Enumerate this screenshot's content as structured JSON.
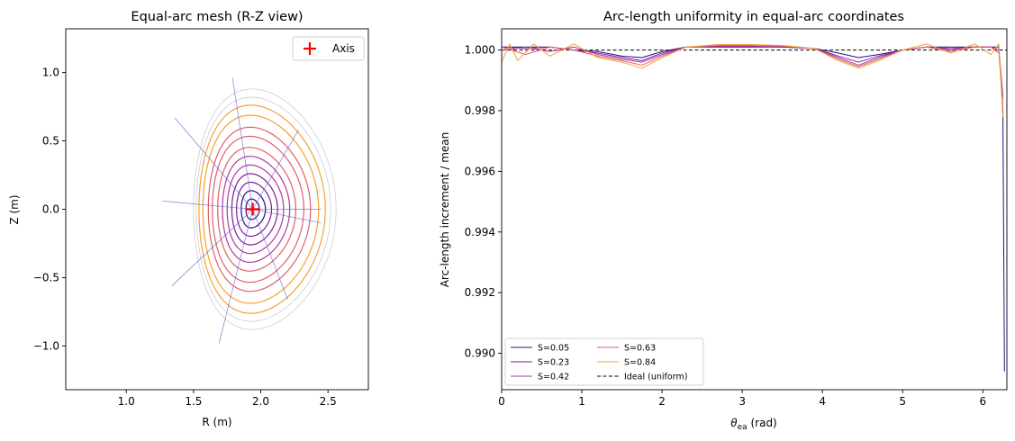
{
  "colors": {
    "S005": "#2a0a8a",
    "S023": "#7c1aa0",
    "S042": "#b1389a",
    "S063": "#df5f69",
    "S084": "#f5a033",
    "outer": "#c8c4cf",
    "ray": "#6a5acd",
    "axis_marker": "#ff0000",
    "ideal": "#000000"
  },
  "chart_data": [
    {
      "type": "line",
      "title": "Equal-arc mesh (R-Z view)",
      "xlabel": "R (m)",
      "ylabel": "Z (m)",
      "xlim": [
        0.55,
        2.8
      ],
      "ylim": [
        -1.32,
        1.32
      ],
      "xticks": [
        "1.0",
        "1.5",
        "2.0",
        "2.5"
      ],
      "xtick_values": [
        1.0,
        1.5,
        2.0,
        2.5
      ],
      "yticks": [
        "1.0",
        "0.5",
        "0.0",
        "−0.5",
        "−1.0"
      ],
      "ytick_values": [
        1.0,
        0.5,
        0.0,
        -0.5,
        -1.0
      ],
      "magnetic_axis": {
        "R": 1.94,
        "Z": 0.0
      },
      "legend": {
        "position": "top-right",
        "entries": [
          "Axis"
        ]
      },
      "surfaces": [
        {
          "minor_radius": 0.05,
          "elongation": 1.5,
          "shift": 0.0,
          "color_key": "S005"
        },
        {
          "minor_radius": 0.09,
          "elongation": 1.51,
          "shift": 0.005,
          "color_key": "S005"
        },
        {
          "minor_radius": 0.13,
          "elongation": 1.52,
          "shift": 0.01,
          "color_key": "S023"
        },
        {
          "minor_radius": 0.17,
          "elongation": 1.53,
          "shift": 0.015,
          "color_key": "S023"
        },
        {
          "minor_radius": 0.21,
          "elongation": 1.54,
          "shift": 0.02,
          "color_key": "S042"
        },
        {
          "minor_radius": 0.25,
          "elongation": 1.55,
          "shift": 0.025,
          "color_key": "S042"
        },
        {
          "minor_radius": 0.29,
          "elongation": 1.56,
          "shift": 0.03,
          "color_key": "S063"
        },
        {
          "minor_radius": 0.34,
          "elongation": 1.57,
          "shift": 0.04,
          "color_key": "S063"
        },
        {
          "minor_radius": 0.38,
          "elongation": 1.58,
          "shift": 0.05,
          "color_key": "S063"
        },
        {
          "minor_radius": 0.43,
          "elongation": 1.6,
          "shift": 0.06,
          "color_key": "S084"
        },
        {
          "minor_radius": 0.47,
          "elongation": 1.62,
          "shift": 0.07,
          "color_key": "S084"
        },
        {
          "minor_radius": 0.5,
          "elongation": 1.64,
          "shift": 0.08,
          "color_key": "outer"
        },
        {
          "minor_radius": 0.53,
          "elongation": 1.66,
          "shift": 0.09,
          "color_key": "outer"
        }
      ],
      "rays": [
        {
          "R_end": 2.45,
          "Z_end": 0.0
        },
        {
          "R_end": 2.28,
          "Z_end": 0.58
        },
        {
          "R_end": 1.79,
          "Z_end": 0.96
        },
        {
          "R_end": 1.36,
          "Z_end": 0.67
        },
        {
          "R_end": 1.27,
          "Z_end": 0.06
        },
        {
          "R_end": 1.34,
          "Z_end": -0.56
        },
        {
          "R_end": 1.69,
          "Z_end": -0.98
        },
        {
          "R_end": 2.2,
          "Z_end": -0.66
        },
        {
          "R_end": 2.45,
          "Z_end": -0.1
        }
      ]
    },
    {
      "type": "line",
      "title": "Arc-length uniformity in equal-arc coordinates",
      "xlabel_main": "θ",
      "xlabel_sub": "ea",
      "xlabel_unit": " (rad)",
      "ylabel": "Arc-length increment / mean",
      "xlim": [
        0,
        6.3
      ],
      "ylim": [
        0.9888,
        1.0007
      ],
      "xticks": [
        "0",
        "1",
        "2",
        "3",
        "4",
        "5",
        "6"
      ],
      "xtick_values": [
        0,
        1,
        2,
        3,
        4,
        5,
        6
      ],
      "yticks": [
        "1.000",
        "0.998",
        "0.996",
        "0.994",
        "0.992",
        "0.990"
      ],
      "ytick_values": [
        1.0,
        0.998,
        0.996,
        0.994,
        0.992,
        0.99
      ],
      "legend": {
        "position": "lower-left",
        "entries": [
          "S=0.05",
          "S=0.23",
          "S=0.42",
          "S=0.63",
          "S=0.84",
          "Ideal (uniform)"
        ]
      },
      "ideal": 1.0,
      "series": [
        {
          "name": "S=0.05",
          "color_key": "S005",
          "x": [
            0,
            0.3,
            0.6,
            0.9,
            1.2,
            1.5,
            1.75,
            2.0,
            2.3,
            2.7,
            3.1,
            3.5,
            3.9,
            4.2,
            4.45,
            4.7,
            5.0,
            5.3,
            5.6,
            5.9,
            6.1,
            6.2,
            6.25,
            6.27
          ],
          "y": [
            1.0001,
            1.0001,
            1.0001,
            1.0,
            0.99995,
            0.9998,
            0.99975,
            0.99995,
            1.0001,
            1.0001,
            1.0001,
            1.0001,
            1.00005,
            0.9999,
            0.99975,
            0.99985,
            1.0,
            1.0001,
            1.0001,
            1.0001,
            1.0001,
            1.0001,
            0.998,
            0.9894
          ]
        },
        {
          "name": "S=0.23",
          "color_key": "S023",
          "x": [
            0,
            0.3,
            0.6,
            0.9,
            1.2,
            1.5,
            1.75,
            2.0,
            2.3,
            2.7,
            3.1,
            3.5,
            3.9,
            4.2,
            4.45,
            4.7,
            5.0,
            5.3,
            5.6,
            5.9,
            6.1,
            6.2,
            6.25
          ],
          "y": [
            1.0001,
            1.00005,
            1.0001,
            1.0,
            0.9999,
            0.99975,
            0.99965,
            0.9999,
            1.0001,
            1.00012,
            1.00012,
            1.0001,
            1.00005,
            0.9998,
            0.9996,
            0.9998,
            1.0,
            1.0001,
            1.00005,
            1.0001,
            1.0001,
            1.0,
            0.9985
          ]
        },
        {
          "name": "S=0.42",
          "color_key": "S042",
          "x": [
            0,
            0.3,
            0.6,
            0.9,
            1.2,
            1.5,
            1.75,
            2.0,
            2.3,
            2.7,
            3.1,
            3.5,
            3.9,
            4.2,
            4.45,
            4.7,
            5.0,
            5.3,
            5.6,
            5.9,
            6.1,
            6.2,
            6.25
          ],
          "y": [
            1.0,
            1.0001,
            0.99995,
            1.0001,
            0.99985,
            0.9997,
            0.9996,
            0.99985,
            1.0001,
            1.00013,
            1.00013,
            1.00012,
            1.00005,
            0.99975,
            0.9995,
            0.99975,
            1.0,
            1.0001,
            1.0,
            1.0001,
            1.0001,
            1.0,
            0.9984
          ]
        },
        {
          "name": "S=0.63",
          "color_key": "S063",
          "x": [
            0,
            0.3,
            0.6,
            0.9,
            1.2,
            1.5,
            1.75,
            2.0,
            2.3,
            2.7,
            3.1,
            3.5,
            3.9,
            4.2,
            4.45,
            4.7,
            5.0,
            5.3,
            5.6,
            5.9,
            6.1,
            6.2,
            6.25
          ],
          "y": [
            1.0001,
            0.99985,
            1.0001,
            1.0,
            0.9998,
            0.99965,
            0.9995,
            0.9998,
            1.0001,
            1.00015,
            1.00015,
            1.00013,
            1.00005,
            0.9997,
            0.99945,
            0.9997,
            1.0,
            1.0001,
            0.99995,
            1.0001,
            1.0001,
            0.9999,
            0.9982
          ]
        },
        {
          "name": "S=0.84",
          "color_key": "S084",
          "x": [
            0,
            0.1,
            0.2,
            0.4,
            0.6,
            0.9,
            1.2,
            1.5,
            1.75,
            2.0,
            2.3,
            2.7,
            3.1,
            3.5,
            3.9,
            4.2,
            4.45,
            4.7,
            5.0,
            5.3,
            5.6,
            5.9,
            6.1,
            6.2,
            6.25
          ],
          "y": [
            0.9996,
            1.0002,
            0.99965,
            1.0002,
            0.9998,
            1.0002,
            0.99975,
            0.9996,
            0.9994,
            0.99975,
            1.0001,
            1.00018,
            1.00018,
            1.00015,
            1.00005,
            0.99965,
            0.9994,
            0.99965,
            1.0,
            1.0002,
            0.9999,
            1.0002,
            0.99985,
            1.0002,
            0.9978
          ]
        }
      ]
    }
  ]
}
